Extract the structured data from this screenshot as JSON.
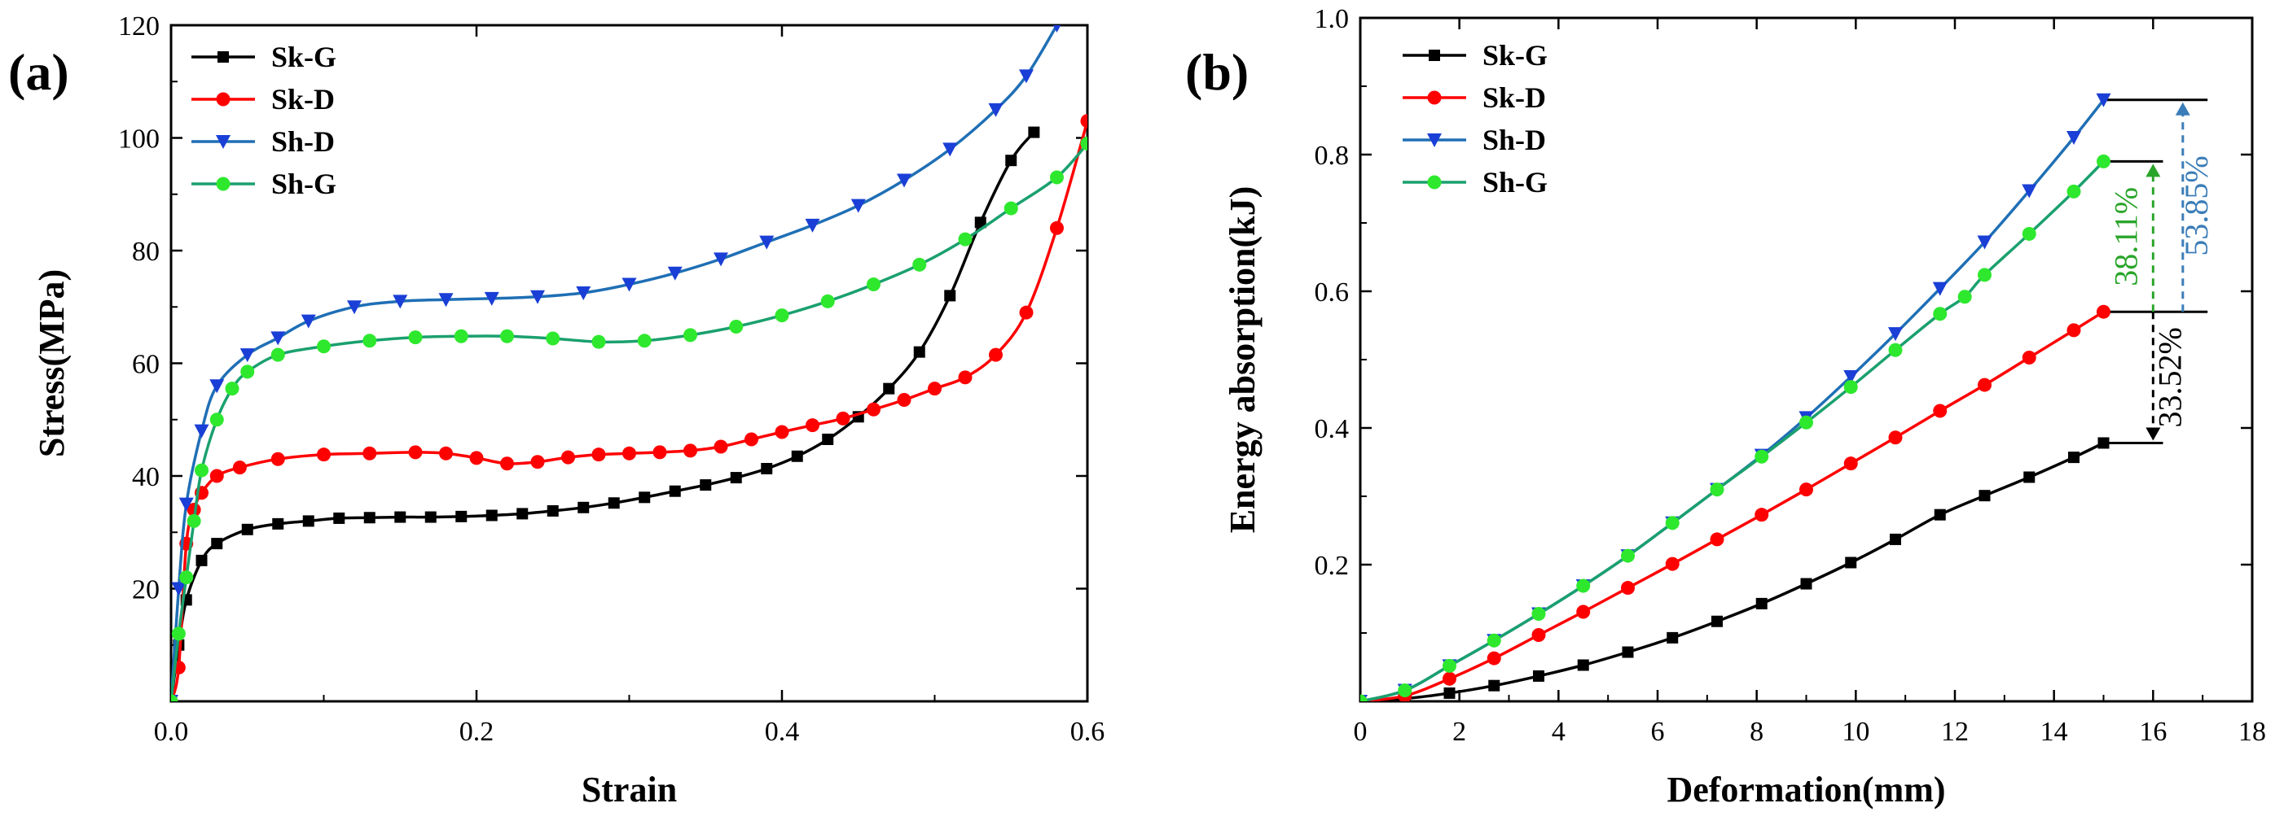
{
  "colors": {
    "sk_g": "#000000",
    "sk_d": "#ff0000",
    "sh_d": "#1f6fb5",
    "sh_g": "#1aa06e",
    "sh_d_marker": "#1a3fd6",
    "sh_g_marker": "#2ee82e",
    "ann_green": "#2aa52a",
    "ann_blue": "#3b7db8",
    "ann_black": "#000000"
  },
  "chart_data": [
    {
      "type": "line",
      "panel_label": "(a)",
      "title": "",
      "xlabel": "Strain",
      "ylabel": "Stress(MPa)",
      "xlim": [
        0,
        0.6
      ],
      "ylim": [
        0,
        120
      ],
      "xticks": [
        "0.0",
        "0.2",
        "0.4",
        "0.6"
      ],
      "yticks": [
        "20",
        "40",
        "60",
        "80",
        "100",
        "120"
      ],
      "xtick_values": [
        0,
        0.2,
        0.4,
        0.6
      ],
      "ytick_values": [
        20,
        40,
        60,
        80,
        100,
        120
      ],
      "legend": [
        "Sk-G",
        "Sk-D",
        "Sh-D",
        "Sh-G"
      ],
      "legend_position": "top-left",
      "series": [
        {
          "name": "Sk-G",
          "marker": "square",
          "x": [
            0,
            0.005,
            0.01,
            0.02,
            0.03,
            0.05,
            0.07,
            0.09,
            0.11,
            0.13,
            0.15,
            0.17,
            0.19,
            0.21,
            0.23,
            0.25,
            0.27,
            0.29,
            0.31,
            0.33,
            0.35,
            0.37,
            0.39,
            0.41,
            0.43,
            0.45,
            0.47,
            0.49,
            0.51,
            0.53,
            0.55,
            0.565
          ],
          "y": [
            0,
            10,
            18,
            25,
            28,
            30.5,
            31.5,
            32,
            32.5,
            32.6,
            32.7,
            32.7,
            32.8,
            33.0,
            33.3,
            33.8,
            34.4,
            35.2,
            36.2,
            37.3,
            38.4,
            39.7,
            41.3,
            43.5,
            46.5,
            50.5,
            55.5,
            62,
            72,
            85,
            96,
            101
          ]
        },
        {
          "name": "Sk-D",
          "marker": "circle",
          "x": [
            0,
            0.005,
            0.01,
            0.015,
            0.02,
            0.03,
            0.045,
            0.07,
            0.1,
            0.13,
            0.16,
            0.18,
            0.2,
            0.22,
            0.24,
            0.26,
            0.28,
            0.3,
            0.32,
            0.34,
            0.36,
            0.38,
            0.4,
            0.42,
            0.44,
            0.46,
            0.48,
            0.5,
            0.52,
            0.54,
            0.56,
            0.58,
            0.6
          ],
          "y": [
            0,
            6,
            28,
            34,
            37,
            40,
            41.5,
            43,
            43.8,
            44.0,
            44.2,
            44.0,
            43.2,
            42.2,
            42.5,
            43.3,
            43.8,
            44.0,
            44.2,
            44.5,
            45.2,
            46.5,
            47.8,
            49.0,
            50.2,
            51.8,
            53.5,
            55.5,
            57.5,
            61.5,
            69,
            84,
            103
          ]
        },
        {
          "name": "Sh-D",
          "marker": "triangle-down",
          "x": [
            0,
            0.005,
            0.01,
            0.02,
            0.03,
            0.05,
            0.07,
            0.09,
            0.12,
            0.15,
            0.18,
            0.21,
            0.24,
            0.27,
            0.3,
            0.33,
            0.36,
            0.39,
            0.42,
            0.45,
            0.48,
            0.51,
            0.54,
            0.56,
            0.58
          ],
          "y": [
            0,
            20,
            35,
            48,
            56,
            61.5,
            64.5,
            67.5,
            70,
            71,
            71.3,
            71.5,
            71.8,
            72.5,
            74,
            76,
            78.5,
            81.5,
            84.5,
            88,
            92.5,
            98,
            105,
            111,
            120
          ]
        },
        {
          "name": "Sh-G",
          "marker": "circle",
          "x": [
            0,
            0.005,
            0.01,
            0.015,
            0.02,
            0.03,
            0.04,
            0.05,
            0.07,
            0.1,
            0.13,
            0.16,
            0.19,
            0.22,
            0.25,
            0.28,
            0.31,
            0.34,
            0.37,
            0.4,
            0.43,
            0.46,
            0.49,
            0.52,
            0.55,
            0.58,
            0.6
          ],
          "y": [
            0,
            12,
            22,
            32,
            41,
            50,
            55.5,
            58.5,
            61.5,
            63,
            64,
            64.6,
            64.8,
            64.8,
            64.4,
            63.8,
            64.0,
            65.0,
            66.5,
            68.5,
            71,
            74,
            77.5,
            82,
            87.5,
            93,
            99
          ]
        }
      ]
    },
    {
      "type": "line",
      "panel_label": "(b)",
      "title": "",
      "xlabel": "Deformation(mm)",
      "ylabel": "Energy absorption(kJ)",
      "xlim": [
        0,
        18
      ],
      "ylim": [
        0,
        1.0
      ],
      "xticks": [
        "0",
        "2",
        "4",
        "6",
        "8",
        "10",
        "12",
        "14",
        "16",
        "18"
      ],
      "yticks": [
        "0.2",
        "0.4",
        "0.6",
        "0.8",
        "1.0"
      ],
      "xtick_values": [
        0,
        2,
        4,
        6,
        8,
        10,
        12,
        14,
        16,
        18
      ],
      "ytick_values": [
        0.2,
        0.4,
        0.6,
        0.8,
        1.0
      ],
      "legend": [
        "Sk-G",
        "Sk-D",
        "Sh-D",
        "Sh-G"
      ],
      "legend_position": "top-left",
      "series": [
        {
          "name": "Sk-G",
          "marker": "square",
          "x": [
            0,
            0.9,
            1.8,
            2.7,
            3.6,
            4.5,
            5.4,
            6.3,
            7.2,
            8.1,
            9.0,
            9.9,
            10.8,
            11.7,
            12.6,
            13.5,
            14.4,
            15.0
          ],
          "y": [
            0,
            0.004,
            0.012,
            0.023,
            0.037,
            0.053,
            0.072,
            0.093,
            0.117,
            0.143,
            0.172,
            0.203,
            0.237,
            0.273,
            0.301,
            0.328,
            0.357,
            0.378
          ]
        },
        {
          "name": "Sk-D",
          "marker": "circle",
          "x": [
            0,
            0.9,
            1.8,
            2.7,
            3.6,
            4.5,
            5.4,
            6.3,
            7.2,
            8.1,
            9.0,
            9.9,
            10.8,
            11.7,
            12.6,
            13.5,
            14.4,
            15.0
          ],
          "y": [
            0,
            0.008,
            0.033,
            0.063,
            0.097,
            0.131,
            0.166,
            0.201,
            0.237,
            0.273,
            0.31,
            0.348,
            0.386,
            0.425,
            0.463,
            0.503,
            0.543,
            0.57
          ]
        },
        {
          "name": "Sh-D",
          "marker": "triangle-down",
          "x": [
            0,
            0.9,
            1.8,
            2.7,
            3.6,
            4.5,
            5.4,
            6.3,
            7.2,
            8.1,
            9.0,
            9.9,
            10.8,
            11.7,
            12.6,
            13.5,
            14.4,
            15.0
          ],
          "y": [
            0,
            0.016,
            0.052,
            0.089,
            0.128,
            0.169,
            0.213,
            0.261,
            0.31,
            0.36,
            0.415,
            0.475,
            0.538,
            0.604,
            0.672,
            0.747,
            0.825,
            0.88
          ]
        },
        {
          "name": "Sh-G",
          "marker": "circle",
          "x": [
            0,
            0.9,
            1.8,
            2.7,
            3.6,
            4.5,
            5.4,
            6.3,
            7.2,
            8.1,
            9.0,
            9.9,
            10.8,
            11.7,
            12.2,
            12.6,
            13.5,
            14.4,
            15.0
          ],
          "y": [
            0,
            0.016,
            0.052,
            0.089,
            0.128,
            0.169,
            0.213,
            0.261,
            0.31,
            0.358,
            0.408,
            0.46,
            0.514,
            0.567,
            0.592,
            0.624,
            0.684,
            0.746,
            0.79
          ]
        }
      ],
      "annotations": [
        {
          "text": "38.11%",
          "color_key": "ann_green",
          "x": 16.0,
          "y_from": 0.57,
          "y_to": 0.79
        },
        {
          "text": "53.85%",
          "color_key": "ann_blue",
          "x": 16.6,
          "y_from": 0.57,
          "y_to": 0.88
        },
        {
          "text": "33.52%",
          "color_key": "ann_black",
          "x": 16.0,
          "y_from": 0.57,
          "y_to": 0.378
        }
      ],
      "reference_lines": [
        {
          "series": "Sh-D",
          "x_from": 15.0,
          "x_to": 17.1,
          "y": 0.88
        },
        {
          "series": "Sh-G",
          "x_from": 15.0,
          "x_to": 16.2,
          "y": 0.79
        },
        {
          "series": "Sk-D",
          "x_from": 15.0,
          "x_to": 17.1,
          "y": 0.57
        },
        {
          "series": "Sk-G",
          "x_from": 15.0,
          "x_to": 16.2,
          "y": 0.378
        }
      ]
    }
  ]
}
